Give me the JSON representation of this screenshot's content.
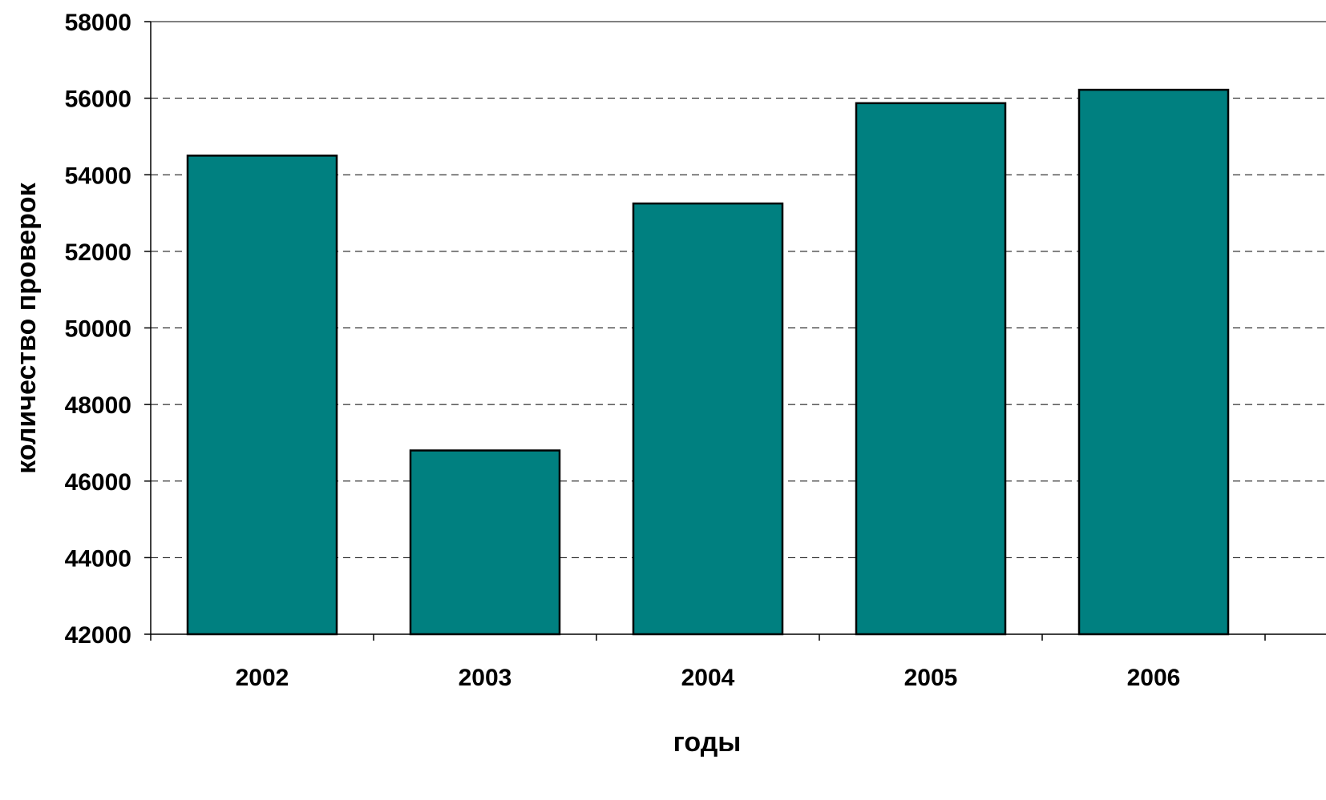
{
  "chart_data": {
    "type": "bar",
    "title": "",
    "xlabel": "годы",
    "ylabel": "количество проверок",
    "categories": [
      "2002",
      "2003",
      "2004",
      "2005",
      "2006"
    ],
    "series": [
      {
        "values": [
          54500,
          46800,
          53250,
          55870,
          56220
        ]
      }
    ],
    "ylim": [
      42000,
      58000
    ],
    "yticks": [
      42000,
      44000,
      46000,
      48000,
      50000,
      52000,
      54000,
      56000,
      58000
    ],
    "ytick_labels": [
      "42000",
      "44000",
      "46000",
      "48000",
      "50000",
      "52000",
      "54000",
      "56000",
      "58000"
    ],
    "grid": "horizontal-dashed",
    "legend": "none",
    "colors": {
      "bar_fill": "#008080",
      "bar_stroke": "#000000",
      "grid": "#000000",
      "axis": "#000000",
      "plot_border": "#808080"
    }
  }
}
